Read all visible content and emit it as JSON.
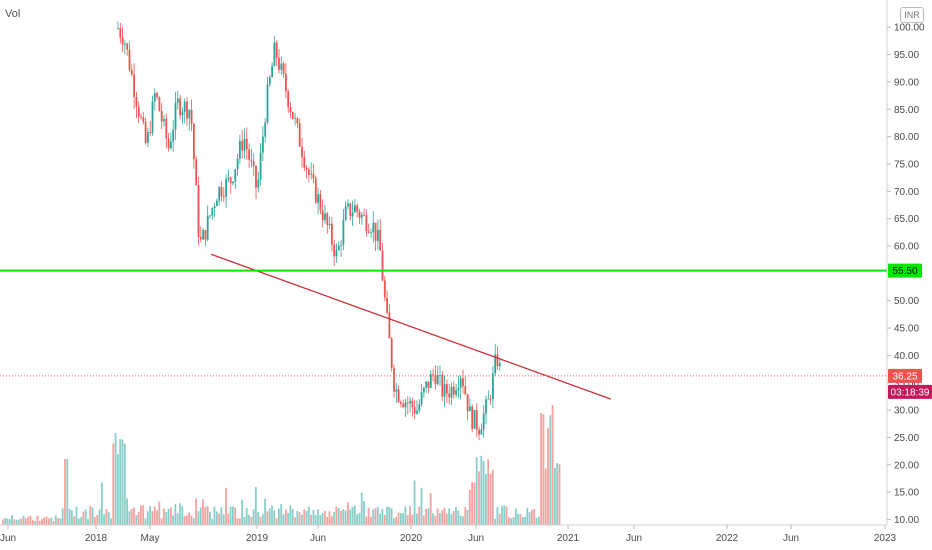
{
  "header": {
    "indicator_label": "Vol",
    "currency": "INR"
  },
  "colors": {
    "up": "#26a69a",
    "down": "#ef5350",
    "hline": "#00e600",
    "trendline": "#c8303c",
    "countdown_bg": "#c2185b",
    "price_line": "#ef5350"
  },
  "chart_data": {
    "type": "candlestick",
    "x_ticks": [
      "Jun",
      "2018",
      "May",
      "2019",
      "Jun",
      "2020",
      "Jun",
      "2021",
      "Jun",
      "2022",
      "Jun",
      "2023"
    ],
    "y_ticks": [
      "10.00",
      "15.00",
      "20.00",
      "25.00",
      "30.00",
      "35.00",
      "40.00",
      "45.00",
      "50.00",
      "55.00",
      "60.00",
      "65.00",
      "70.00",
      "75.00",
      "80.00",
      "85.00",
      "90.00",
      "95.00",
      "100.00"
    ],
    "ylim": [
      9,
      102
    ],
    "horizontal_line": {
      "value": 55.5,
      "label": "55.50"
    },
    "last_price": {
      "value": 36.25,
      "label": "36.25"
    },
    "countdown": "03:18:39",
    "trendline": {
      "from": {
        "x": "2018-08",
        "y": 58.5
      },
      "to": {
        "x": "2021-05",
        "y": 32
      }
    },
    "price_path": [
      [
        0.0,
        null
      ],
      [
        0.04,
        null
      ],
      [
        0.09,
        null
      ],
      [
        0.125,
        102
      ],
      [
        0.14,
        98
      ],
      [
        0.155,
        86
      ],
      [
        0.165,
        78
      ],
      [
        0.175,
        88
      ],
      [
        0.19,
        78
      ],
      [
        0.2,
        86
      ],
      [
        0.215,
        85
      ],
      [
        0.225,
        60
      ],
      [
        0.23,
        62
      ],
      [
        0.245,
        70
      ],
      [
        0.26,
        72
      ],
      [
        0.275,
        80
      ],
      [
        0.29,
        70
      ],
      [
        0.3,
        86
      ],
      [
        0.31,
        96
      ],
      [
        0.32,
        90
      ],
      [
        0.33,
        84
      ],
      [
        0.34,
        78
      ],
      [
        0.35,
        72
      ],
      [
        0.36,
        68
      ],
      [
        0.37,
        63
      ],
      [
        0.38,
        58
      ],
      [
        0.39,
        66
      ],
      [
        0.4,
        67
      ],
      [
        0.41,
        65
      ],
      [
        0.42,
        64
      ],
      [
        0.428,
        60
      ],
      [
        0.435,
        48
      ],
      [
        0.445,
        34
      ],
      [
        0.455,
        32
      ],
      [
        0.47,
        30
      ],
      [
        0.48,
        34
      ],
      [
        0.49,
        37
      ],
      [
        0.5,
        33
      ],
      [
        0.51,
        34
      ],
      [
        0.52,
        37
      ],
      [
        0.53,
        29
      ],
      [
        0.54,
        27
      ],
      [
        0.55,
        31
      ],
      [
        0.555,
        35
      ],
      [
        0.56,
        40
      ],
      [
        0.565,
        36.25
      ]
    ]
  }
}
